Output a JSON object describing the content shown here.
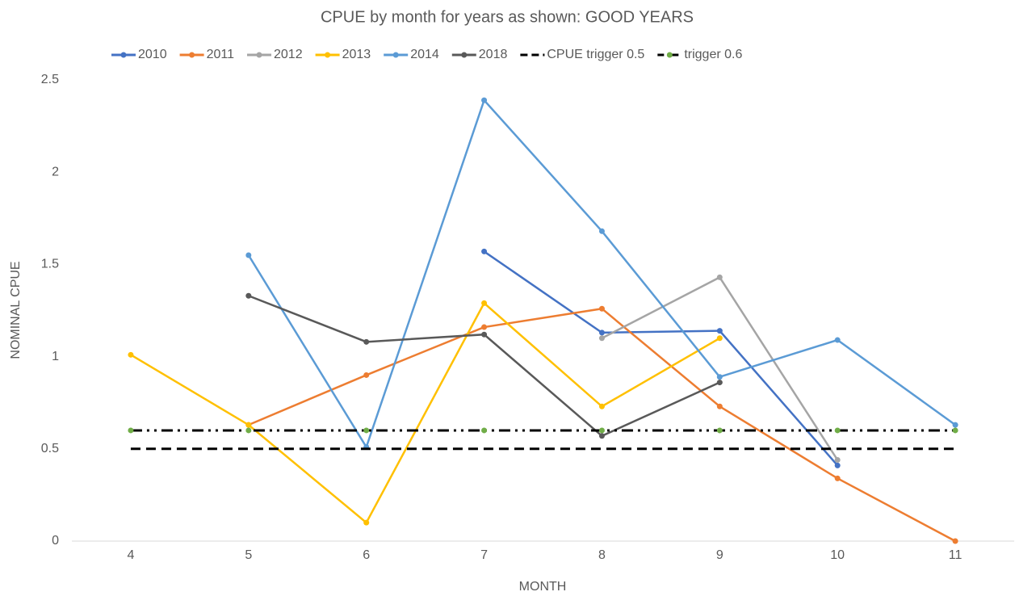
{
  "chart_data": {
    "type": "line",
    "title": "CPUE by month for years as shown: GOOD YEARS",
    "x_label": "MONTH",
    "y_label": "NOMINAL CPUE",
    "categories": [
      "4",
      "5",
      "6",
      "7",
      "8",
      "9",
      "10",
      "11"
    ],
    "ylim": [
      0,
      2.5
    ],
    "yticks": [
      0,
      0.5,
      1,
      1.5,
      2,
      2.5
    ],
    "grid": false,
    "legend": "top",
    "series": [
      {
        "name": "2010",
        "color": "#4472c4",
        "line_style": "solid",
        "marker": true,
        "values": [
          null,
          null,
          null,
          1.57,
          1.13,
          1.14,
          0.41,
          null
        ]
      },
      {
        "name": "2011",
        "color": "#ed7d31",
        "line_style": "solid",
        "marker": true,
        "values": [
          null,
          0.63,
          0.9,
          1.16,
          1.26,
          0.73,
          0.34,
          0
        ]
      },
      {
        "name": "2012",
        "color": "#a5a5a5",
        "line_style": "solid",
        "marker": true,
        "values": [
          null,
          null,
          null,
          null,
          1.1,
          1.43,
          0.44,
          null
        ]
      },
      {
        "name": "2013",
        "color": "#ffc000",
        "line_style": "solid",
        "marker": true,
        "values": [
          1.01,
          0.63,
          0.1,
          1.29,
          0.73,
          1.1,
          null,
          null
        ]
      },
      {
        "name": "2014",
        "color": "#5b9bd5",
        "line_style": "solid",
        "marker": true,
        "values": [
          null,
          1.55,
          0.51,
          2.39,
          1.68,
          0.89,
          1.09,
          0.63
        ]
      },
      {
        "name": "2018",
        "color": "#595959",
        "line_style": "solid",
        "marker": true,
        "values": [
          null,
          1.33,
          1.08,
          1.12,
          0.57,
          0.86,
          null,
          null
        ]
      },
      {
        "name": "CPUE trigger 0.5",
        "color": "#000000",
        "line_style": "dash",
        "marker": false,
        "values": [
          0.5,
          0.5,
          0.5,
          0.5,
          0.5,
          0.5,
          0.5,
          0.5
        ]
      },
      {
        "name": "trigger 0.6",
        "color": "#000000",
        "marker_color": "#70ad47",
        "line_style": "dashdot",
        "marker": true,
        "values": [
          0.6,
          0.6,
          0.6,
          0.6,
          0.6,
          0.6,
          0.6,
          0.6
        ]
      }
    ]
  }
}
